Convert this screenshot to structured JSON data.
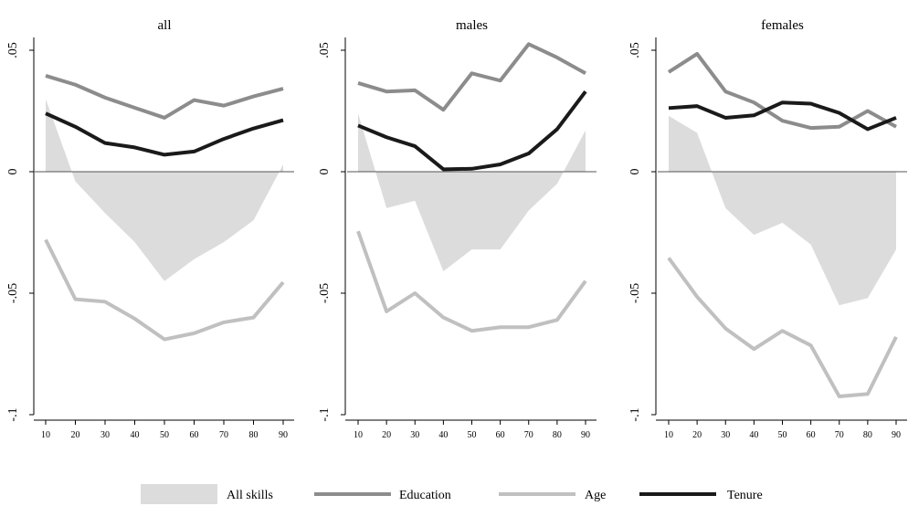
{
  "chart_data": {
    "type": "area",
    "x": [
      10,
      20,
      30,
      40,
      50,
      60,
      70,
      80,
      90
    ],
    "ylim": [
      -0.1,
      0.05
    ],
    "yticks": [
      {
        "value": 0.05,
        "label": ".05"
      },
      {
        "value": 0,
        "label": "0"
      },
      {
        "value": -0.05,
        "label": "-.05"
      },
      {
        "value": -0.1,
        "label": "-.1"
      }
    ],
    "xticks": [
      "10",
      "20",
      "30",
      "40",
      "50",
      "60",
      "70",
      "80",
      "90"
    ],
    "legend": {
      "position": "bottom",
      "entries": [
        {
          "name": "All skills",
          "kind": "area",
          "color": "#dcdcdc"
        },
        {
          "name": "Education",
          "kind": "line",
          "color": "#8c8c8c"
        },
        {
          "name": "Age",
          "kind": "line",
          "color": "#c0c0c0"
        },
        {
          "name": "Tenure",
          "kind": "line",
          "color": "#1a1a1a"
        }
      ]
    },
    "panels": [
      {
        "title": "all",
        "series": [
          {
            "name": "All skills",
            "values": [
              0.03,
              -0.004,
              -0.017,
              -0.029,
              -0.045,
              -0.036,
              -0.029,
              -0.02,
              0.003
            ]
          },
          {
            "name": "Education",
            "values": [
              0.0395,
              0.0358,
              0.0305,
              0.0263,
              0.0222,
              0.0295,
              0.0272,
              0.031,
              0.0342
            ]
          },
          {
            "name": "Age",
            "values": [
              -0.028,
              -0.0525,
              -0.0535,
              -0.0605,
              -0.069,
              -0.0665,
              -0.062,
              -0.06,
              -0.0455
            ]
          },
          {
            "name": "Tenure",
            "values": [
              0.024,
              0.0185,
              0.0118,
              0.01,
              0.007,
              0.0083,
              0.0135,
              0.0178,
              0.0212
            ]
          }
        ]
      },
      {
        "title": "males",
        "series": [
          {
            "name": "All skills",
            "values": [
              0.024,
              -0.015,
              -0.012,
              -0.041,
              -0.032,
              -0.032,
              -0.016,
              -0.005,
              0.017
            ]
          },
          {
            "name": "Education",
            "values": [
              0.0365,
              0.033,
              0.0335,
              0.0255,
              0.0405,
              0.0375,
              0.0525,
              0.047,
              0.0405
            ]
          },
          {
            "name": "Age",
            "values": [
              -0.0245,
              -0.0575,
              -0.05,
              -0.06,
              -0.0655,
              -0.064,
              -0.064,
              -0.061,
              -0.045
            ]
          },
          {
            "name": "Tenure",
            "values": [
              0.019,
              0.0142,
              0.0105,
              0.001,
              0.0012,
              0.003,
              0.0075,
              0.0175,
              0.033
            ]
          }
        ]
      },
      {
        "title": "females",
        "series": [
          {
            "name": "All skills",
            "values": [
              0.023,
              0.016,
              -0.015,
              -0.026,
              -0.021,
              -0.03,
              -0.055,
              -0.052,
              -0.032
            ]
          },
          {
            "name": "Education",
            "values": [
              0.041,
              0.0485,
              0.033,
              0.0285,
              0.021,
              0.018,
              0.0185,
              0.025,
              0.0185
            ]
          },
          {
            "name": "Age",
            "values": [
              -0.0355,
              -0.0515,
              -0.0645,
              -0.073,
              -0.0655,
              -0.0715,
              -0.0925,
              -0.0915,
              -0.068
            ]
          },
          {
            "name": "Tenure",
            "values": [
              0.0262,
              0.027,
              0.0222,
              0.0232,
              0.0285,
              0.028,
              0.0242,
              0.0175,
              0.0222
            ]
          }
        ]
      }
    ]
  }
}
